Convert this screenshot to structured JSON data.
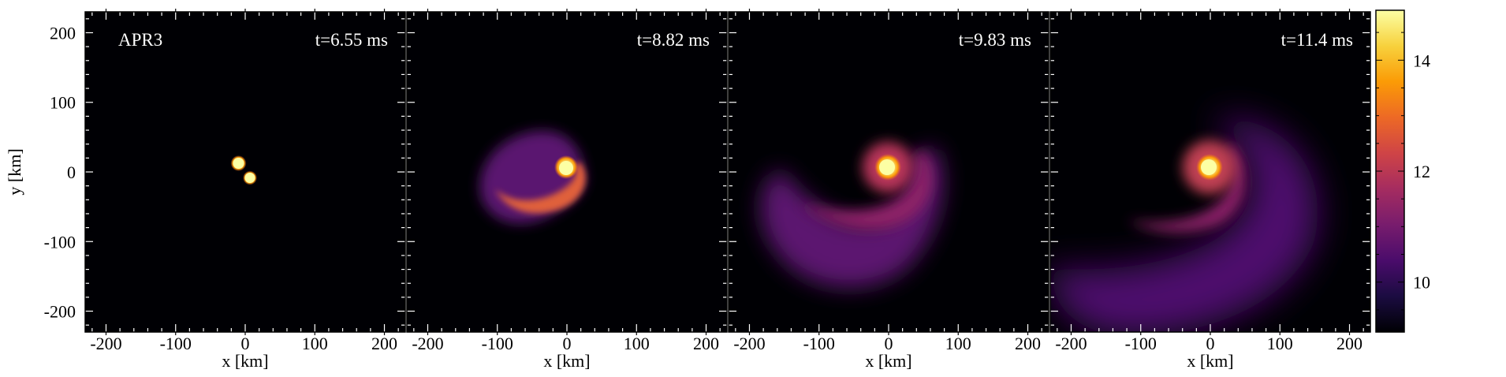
{
  "chart_data": {
    "type": "heatmap",
    "title": "",
    "panel_label": "APR3",
    "xlabel": "x [km]",
    "ylabel": "y [km]",
    "xlim": [
      -230,
      230
    ],
    "ylim": [
      -230,
      230
    ],
    "xticks": [
      -200,
      -100,
      0,
      100,
      200
    ],
    "yticks": [
      -200,
      -100,
      0,
      100,
      200
    ],
    "tick_labels": [
      "-200",
      "-100",
      "0",
      "100",
      "200"
    ],
    "colorbar": {
      "range": [
        9.1,
        14.9
      ],
      "ticks": [
        10,
        12,
        14
      ],
      "tick_labels": [
        "10",
        "12",
        "14"
      ],
      "colormap": "inferno",
      "colors": [
        "#000004",
        "#1b0c41",
        "#4a0c6b",
        "#781c6d",
        "#a52c60",
        "#cf4446",
        "#ed6925",
        "#fb9b06",
        "#f7d13d",
        "#fcffa4"
      ]
    },
    "panels": [
      {
        "time": "t=6.55 ms"
      },
      {
        "time": "t=8.82 ms"
      },
      {
        "time": "t=9.83 ms"
      },
      {
        "time": "t=11.4 ms"
      }
    ]
  }
}
